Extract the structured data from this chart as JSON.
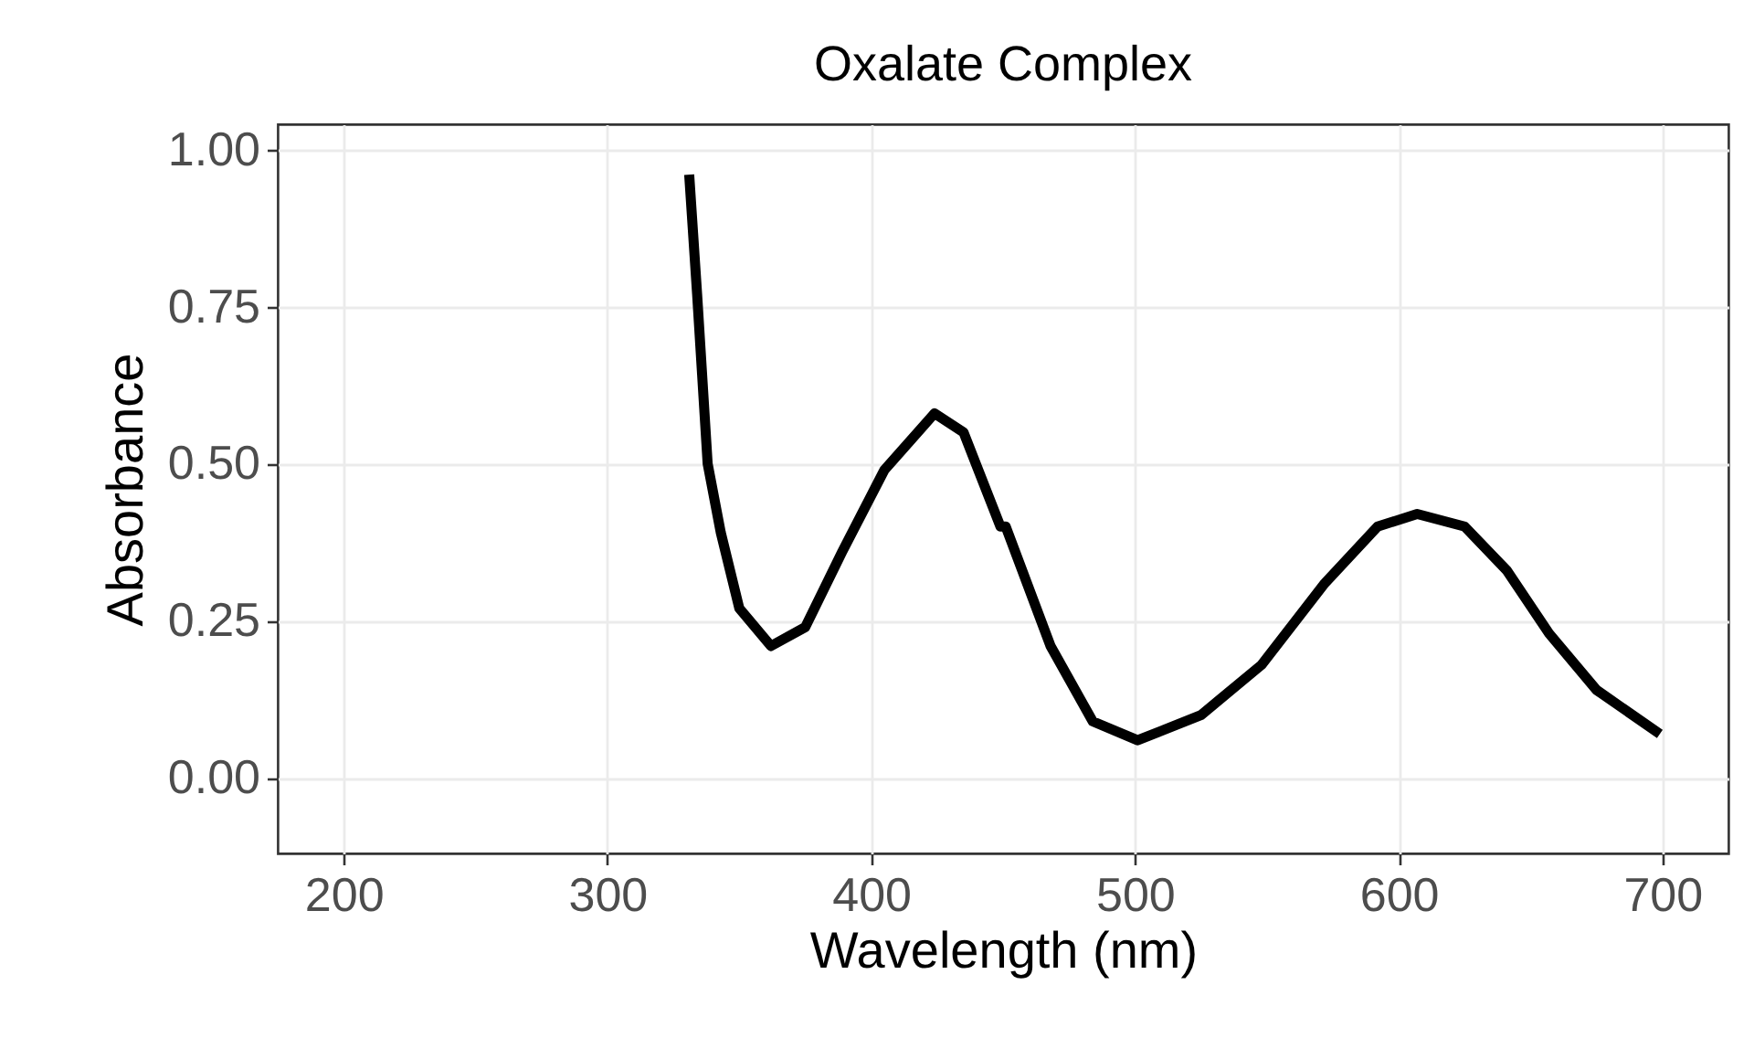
{
  "chart_data": {
    "type": "line",
    "title": "Oxalate Complex",
    "xlabel": "Wavelength (nm)",
    "ylabel": "Absorbance",
    "x": [
      331,
      334,
      338,
      343,
      350,
      362,
      375,
      389,
      405,
      424,
      435,
      449,
      451,
      468,
      484,
      501,
      525,
      548,
      572,
      592,
      607,
      625,
      641,
      657,
      675,
      699
    ],
    "series": [
      {
        "color": "#000000",
        "values": [
          0.96,
          0.77,
          0.5,
          0.39,
          0.27,
          0.21,
          0.24,
          0.36,
          0.49,
          0.58,
          0.55,
          0.4,
          0.4,
          0.21,
          0.09,
          0.06,
          0.1,
          0.18,
          0.31,
          0.4,
          0.42,
          0.4,
          0.33,
          0.23,
          0.14,
          0.07
        ]
      }
    ],
    "xlim": [
      175,
      725
    ],
    "xticks": [
      200,
      300,
      400,
      500,
      600,
      700
    ],
    "ylim": [
      -0.12,
      1.04
    ],
    "yticks": [
      {
        "value": 0,
        "label": "0.00"
      },
      {
        "value": 0.25,
        "label": "0.25"
      },
      {
        "value": 0.5,
        "label": "0.50"
      },
      {
        "value": 0.75,
        "label": "0.75"
      },
      {
        "value": 1,
        "label": "1.00"
      }
    ],
    "grid": true,
    "marker": "none",
    "line_style": "solid"
  }
}
